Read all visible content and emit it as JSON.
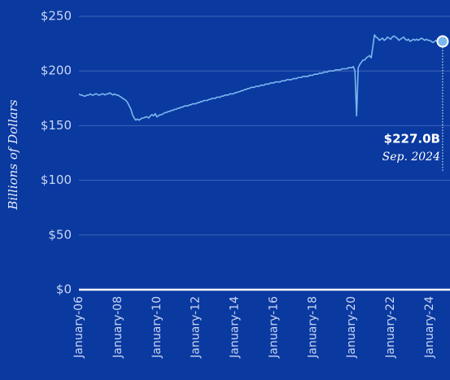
{
  "chart_data": {
    "type": "line",
    "y_label": "Billions of Dollars",
    "annotation": {
      "text": "$227.0B",
      "date": "Sep. 2024"
    },
    "color": "#7cb7ee",
    "grid": true,
    "ylim": [
      0,
      250
    ],
    "yticks": [
      {
        "value": 0,
        "label": "$0"
      },
      {
        "value": 50,
        "label": "$50"
      },
      {
        "value": 100,
        "label": "$100"
      },
      {
        "value": 150,
        "label": "$150"
      },
      {
        "value": 200,
        "label": "$200"
      },
      {
        "value": 250,
        "label": "$250"
      }
    ],
    "categories": [
      "January-06",
      null,
      null,
      null,
      null,
      null,
      null,
      null,
      null,
      null,
      null,
      null,
      null,
      null,
      null,
      null,
      null,
      null,
      null,
      null,
      null,
      null,
      null,
      null,
      "January-08",
      null,
      null,
      null,
      null,
      null,
      null,
      null,
      null,
      null,
      null,
      null,
      null,
      null,
      null,
      null,
      null,
      null,
      null,
      null,
      null,
      null,
      null,
      null,
      "January-10",
      null,
      null,
      null,
      null,
      null,
      null,
      null,
      null,
      null,
      null,
      null,
      null,
      null,
      null,
      null,
      null,
      null,
      null,
      null,
      null,
      null,
      null,
      null,
      "January-12",
      null,
      null,
      null,
      null,
      null,
      null,
      null,
      null,
      null,
      null,
      null,
      null,
      null,
      null,
      null,
      null,
      null,
      null,
      null,
      null,
      null,
      null,
      null,
      "January-14",
      null,
      null,
      null,
      null,
      null,
      null,
      null,
      null,
      null,
      null,
      null,
      null,
      null,
      null,
      null,
      null,
      null,
      null,
      null,
      null,
      null,
      null,
      null,
      "January-16",
      null,
      null,
      null,
      null,
      null,
      null,
      null,
      null,
      null,
      null,
      null,
      null,
      null,
      null,
      null,
      null,
      null,
      null,
      null,
      null,
      null,
      null,
      null,
      "January-18",
      null,
      null,
      null,
      null,
      null,
      null,
      null,
      null,
      null,
      null,
      null,
      null,
      null,
      null,
      null,
      null,
      null,
      null,
      null,
      null,
      null,
      null,
      null,
      "January-20",
      null,
      null,
      null,
      null,
      null,
      null,
      null,
      null,
      null,
      null,
      null,
      null,
      null,
      null,
      null,
      null,
      null,
      null,
      null,
      null,
      null,
      null,
      null,
      "January-22",
      null,
      null,
      null,
      null,
      null,
      null,
      null,
      null,
      null,
      null,
      null,
      null,
      null,
      null,
      null,
      null,
      null,
      null,
      null,
      null,
      null,
      null,
      null,
      "January-24",
      null,
      null,
      null,
      null,
      null,
      null,
      null,
      null
    ],
    "values": [
      179,
      178,
      178,
      177,
      177,
      178,
      178,
      179,
      178,
      178,
      179,
      179,
      178,
      178,
      179,
      179,
      178,
      179,
      179,
      180,
      179,
      178,
      179,
      178,
      178,
      177,
      176,
      175,
      174,
      173,
      171,
      168,
      165,
      160,
      157,
      155,
      156,
      155,
      156,
      157,
      157,
      158,
      158,
      157,
      159,
      160,
      159,
      161,
      158,
      159,
      160,
      160,
      161,
      162,
      162,
      163,
      163,
      164,
      164,
      165,
      165,
      166,
      166,
      167,
      167,
      168,
      168,
      168,
      169,
      169,
      170,
      170,
      170,
      171,
      171,
      172,
      172,
      173,
      173,
      173,
      174,
      174,
      175,
      175,
      175,
      176,
      176,
      176,
      177,
      177,
      178,
      178,
      178,
      179,
      179,
      179,
      180,
      180,
      181,
      181,
      182,
      182,
      183,
      183,
      184,
      184,
      185,
      185,
      185,
      186,
      186,
      186,
      187,
      187,
      187,
      188,
      188,
      188,
      189,
      189,
      189,
      190,
      190,
      190,
      190,
      191,
      191,
      191,
      192,
      192,
      192,
      192,
      193,
      193,
      193,
      194,
      194,
      194,
      195,
      195,
      195,
      195,
      196,
      196,
      196,
      197,
      197,
      197,
      198,
      198,
      198,
      199,
      199,
      199,
      200,
      200,
      200,
      200,
      201,
      201,
      201,
      201,
      202,
      202,
      202,
      202,
      203,
      203,
      203,
      204,
      200,
      159,
      203,
      206,
      208,
      210,
      210,
      212,
      213,
      214,
      212,
      222,
      233,
      231,
      230,
      228,
      229,
      230,
      228,
      229,
      231,
      230,
      229,
      231,
      232,
      231,
      230,
      228,
      229,
      230,
      231,
      229,
      228,
      229,
      227,
      228,
      229,
      228,
      229,
      228,
      229,
      230,
      229,
      228,
      229,
      228,
      228,
      227,
      226,
      227,
      228,
      226,
      226,
      225,
      227
    ]
  }
}
